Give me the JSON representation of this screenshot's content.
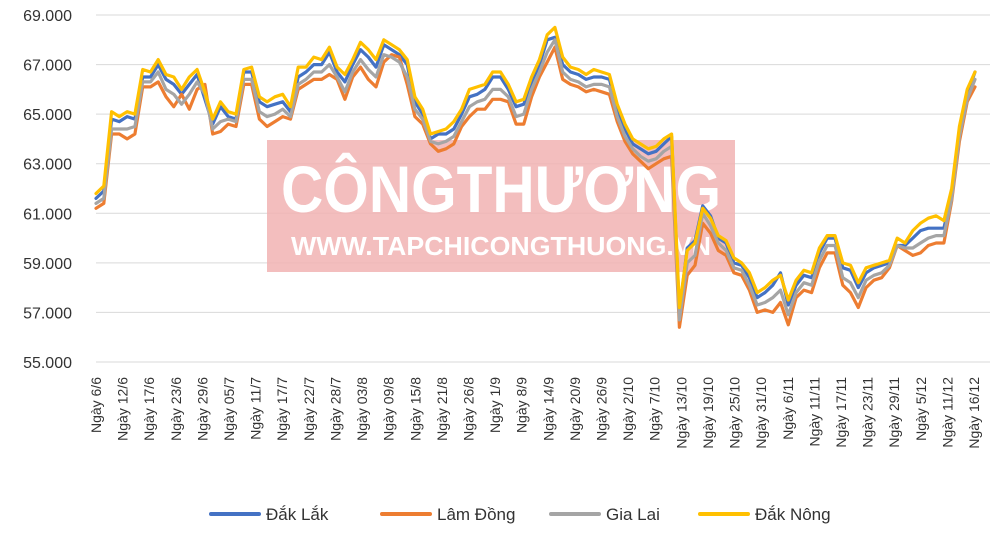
{
  "watermark": {
    "brand": "CÔNGTHƯƠNG",
    "url": "WWW.TAPCHICONGTHUONG.VN",
    "box_color": "#f1b3b3",
    "text_color": "#ffffff"
  },
  "chart_data": {
    "type": "line",
    "title": "",
    "xlabel": "",
    "ylabel": "",
    "ylim": [
      55000,
      69000
    ],
    "yticks": [
      55000,
      57000,
      59000,
      61000,
      63000,
      65000,
      67000,
      69000
    ],
    "ytick_labels": [
      "55.000",
      "57.000",
      "59.000",
      "61.000",
      "63.000",
      "65.000",
      "67.000",
      "69.000"
    ],
    "grid": "horizontal",
    "legend_position": "bottom",
    "xtick_labels": [
      "Ngày 6/6",
      "Ngày 12/6",
      "Ngày 17/6",
      "Ngày 23/6",
      "Ngày 29/6",
      "Ngày 05/7",
      "Ngày 11/7",
      "Ngày 17/7",
      "Ngày 22/7",
      "Ngày 28/7",
      "Ngày 03/8",
      "Ngày 09/8",
      "Ngày 15/8",
      "Ngày 21/8",
      "Ngày 26/8",
      "Ngày 1/9",
      "Ngày 8/9",
      "Ngày 14/9",
      "Ngày 20/9",
      "Ngày 26/9",
      "Ngày 2/10",
      "Ngày 7/10",
      "Ngày 13/10",
      "Ngày 19/10",
      "Ngày 25/10",
      "Ngày 31/10",
      "Ngày 6/11",
      "Ngày 11/11",
      "Ngày 17/11",
      "Ngày 23/11",
      "Ngày 29/11",
      "Ngày 5/12",
      "Ngày 11/12",
      "Ngày 16/12"
    ],
    "series": [
      {
        "name": "Đắk Lắk",
        "color": "#4472c4",
        "values": [
          61600,
          61900,
          64800,
          64700,
          64900,
          64800,
          66500,
          66500,
          67000,
          66400,
          66200,
          65800,
          66200,
          66600,
          65600,
          64600,
          65300,
          64900,
          64800,
          66700,
          66700,
          65500,
          65300,
          65400,
          65500,
          65100,
          66500,
          66700,
          67000,
          67000,
          67500,
          66700,
          66300,
          67000,
          67600,
          67300,
          66900,
          67800,
          67600,
          67400,
          67000,
          65500,
          65000,
          64000,
          64200,
          64200,
          64400,
          65000,
          65700,
          65800,
          66000,
          66500,
          66500,
          66000,
          65300,
          65400,
          66300,
          67000,
          68000,
          68100,
          67000,
          66700,
          66600,
          66400,
          66500,
          66500,
          66400,
          65200,
          64400,
          63800,
          63600,
          63400,
          63500,
          63800,
          64100,
          57000,
          59600,
          59900,
          61300,
          60900,
          60000,
          59800,
          59000,
          58900,
          58400,
          57600,
          57800,
          58100,
          58600,
          57300,
          58100,
          58500,
          58400,
          59400,
          60000,
          60000,
          58800,
          58700,
          58000,
          58600,
          58800,
          58900,
          59000,
          59700,
          59700,
          60000,
          60300,
          60400,
          60400,
          60400,
          61800,
          64300,
          65800,
          66700
        ]
      },
      {
        "name": "Lâm Đồng",
        "color": "#ed7d31",
        "values": [
          61200,
          61400,
          64200,
          64200,
          64000,
          64200,
          66100,
          66100,
          66300,
          65700,
          65300,
          65800,
          65200,
          66000,
          66200,
          64200,
          64300,
          64600,
          64500,
          66200,
          66200,
          64800,
          64500,
          64700,
          64900,
          64800,
          66000,
          66200,
          66400,
          66400,
          66600,
          66400,
          65600,
          66500,
          66900,
          66400,
          66100,
          67100,
          67400,
          67300,
          66200,
          64900,
          64600,
          63800,
          63500,
          63600,
          63800,
          64500,
          64900,
          65200,
          65200,
          65600,
          65600,
          65500,
          64600,
          64600,
          65700,
          66500,
          67100,
          67700,
          66400,
          66200,
          66100,
          65900,
          66000,
          65900,
          65800,
          64700,
          63900,
          63400,
          63100,
          62800,
          63000,
          63200,
          63300,
          56400,
          58500,
          58900,
          60600,
          60200,
          59500,
          59300,
          58600,
          58500,
          57900,
          57000,
          57100,
          57000,
          57400,
          56500,
          57600,
          57900,
          57800,
          58800,
          59400,
          59400,
          58100,
          57800,
          57200,
          58000,
          58300,
          58400,
          58800,
          59700,
          59500,
          59300,
          59400,
          59700,
          59800,
          59800,
          61500,
          63900,
          65500,
          66100
        ]
      },
      {
        "name": "Gia Lai",
        "color": "#a5a5a5",
        "values": [
          61400,
          61600,
          64400,
          64400,
          64400,
          64500,
          66300,
          66300,
          66700,
          66000,
          65800,
          65400,
          65800,
          66300,
          65800,
          64400,
          64700,
          64800,
          64700,
          66400,
          66400,
          65100,
          64900,
          65000,
          65200,
          64900,
          66200,
          66400,
          66700,
          66700,
          67000,
          66500,
          65900,
          66700,
          67200,
          66800,
          66500,
          67400,
          67300,
          67100,
          66500,
          65200,
          64800,
          63900,
          63800,
          63900,
          64100,
          64700,
          65300,
          65500,
          65600,
          66000,
          66000,
          65700,
          64900,
          65000,
          66000,
          66700,
          67500,
          68000,
          66700,
          66400,
          66300,
          66100,
          66200,
          66200,
          66100,
          64900,
          64100,
          63600,
          63300,
          63100,
          63200,
          63500,
          63700,
          56700,
          59000,
          59300,
          61000,
          60500,
          59800,
          59500,
          58800,
          58700,
          58100,
          57300,
          57400,
          57600,
          57900,
          56900,
          57800,
          58200,
          58100,
          59100,
          59700,
          59700,
          58400,
          58200,
          57600,
          58300,
          58500,
          58600,
          58900,
          59700,
          59600,
          59600,
          59800,
          60000,
          60100,
          60100,
          61600,
          64100,
          65600,
          66400
        ]
      },
      {
        "name": "Đắk Nông",
        "color": "#ffc000",
        "values": [
          61800,
          62100,
          65100,
          64900,
          65100,
          65000,
          66800,
          66700,
          67200,
          66600,
          66500,
          66000,
          66500,
          66800,
          65900,
          64800,
          65500,
          65100,
          65000,
          66800,
          66900,
          65700,
          65500,
          65700,
          65800,
          65300,
          66900,
          66900,
          67300,
          67200,
          67700,
          66900,
          66600,
          67200,
          67900,
          67600,
          67200,
          68000,
          67800,
          67600,
          67200,
          65700,
          65200,
          64200,
          64300,
          64400,
          64700,
          65200,
          66000,
          66100,
          66200,
          66700,
          66700,
          66200,
          65500,
          65600,
          66500,
          67200,
          68200,
          68500,
          67300,
          66900,
          66800,
          66600,
          66800,
          66700,
          66600,
          65400,
          64600,
          64000,
          63800,
          63600,
          63700,
          64000,
          64200,
          57200,
          59500,
          59800,
          61200,
          60800,
          60100,
          59900,
          59200,
          59000,
          58600,
          57800,
          58000,
          58300,
          58500,
          57500,
          58300,
          58700,
          58600,
          59600,
          60100,
          60100,
          59000,
          58900,
          58200,
          58800,
          58900,
          59000,
          59100,
          60000,
          59800,
          60300,
          60600,
          60800,
          60900,
          60700,
          62000,
          64500,
          66000,
          66700
        ]
      }
    ]
  }
}
